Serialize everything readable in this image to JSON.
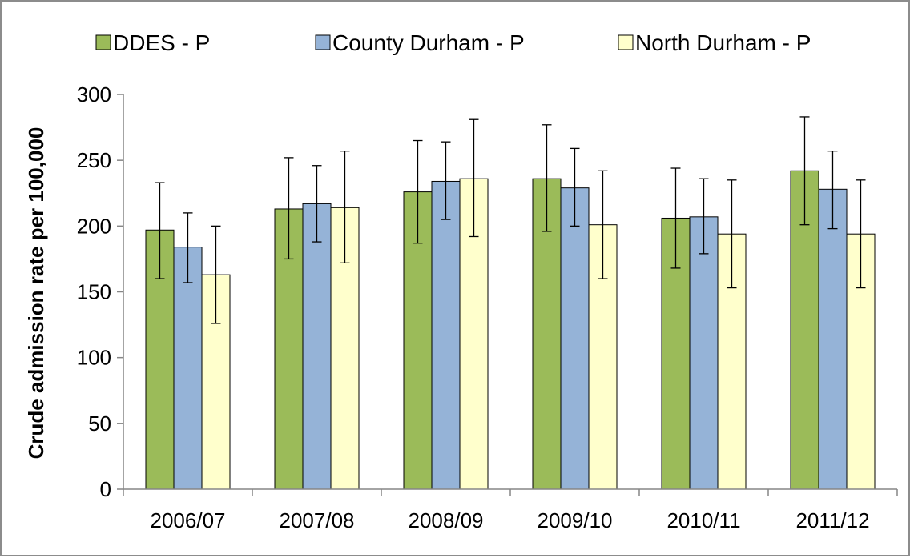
{
  "chart_data": {
    "type": "bar",
    "title": "",
    "xlabel": "",
    "ylabel": "Crude admission rate per 100,000",
    "ylim": [
      0,
      300
    ],
    "yticks": [
      0,
      50,
      100,
      150,
      200,
      250,
      300
    ],
    "grid": false,
    "legend_position": "top",
    "categories": [
      "2006/07",
      "2007/08",
      "2008/09",
      "2009/10",
      "2010/11",
      "2011/12"
    ],
    "series": [
      {
        "name": "DDES - P",
        "color": "#9bbb59",
        "values": [
          197,
          213,
          226,
          236,
          206,
          242
        ],
        "error_low": [
          160,
          175,
          187,
          196,
          168,
          201
        ],
        "error_high": [
          233,
          252,
          265,
          277,
          244,
          283
        ]
      },
      {
        "name": "County Durham - P",
        "color": "#95b3d7",
        "values": [
          184,
          217,
          234,
          229,
          207,
          228
        ],
        "error_low": [
          157,
          188,
          205,
          200,
          179,
          198
        ],
        "error_high": [
          210,
          246,
          264,
          259,
          236,
          257
        ]
      },
      {
        "name": "North Durham - P",
        "color": "#ffffcc",
        "values": [
          163,
          214,
          236,
          201,
          194,
          194
        ],
        "error_low": [
          126,
          172,
          192,
          160,
          153,
          153
        ],
        "error_high": [
          200,
          257,
          281,
          242,
          235,
          235
        ]
      }
    ]
  }
}
